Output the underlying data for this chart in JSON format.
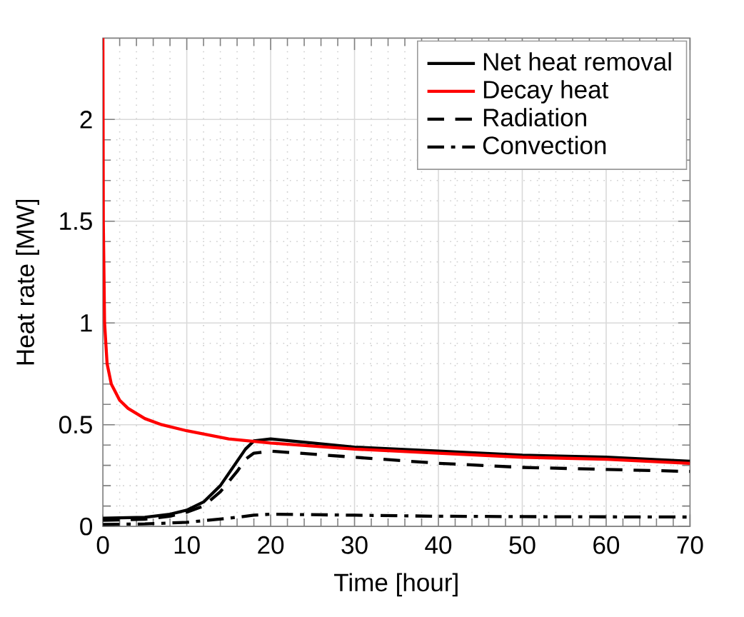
{
  "chart_data": {
    "type": "line",
    "xlabel": "Time [hour]",
    "ylabel": "Heat rate [MW]",
    "xlim": [
      0,
      70
    ],
    "ylim": [
      0,
      2.4
    ],
    "xticks": [
      0,
      10,
      20,
      30,
      40,
      50,
      60,
      70
    ],
    "yticks": [
      0,
      0.5,
      1,
      1.5,
      2
    ],
    "grid": true,
    "legend": "top right",
    "marker": "none",
    "series": [
      {
        "name": "Net heat removal",
        "color": "#000000",
        "line_style": "solid",
        "x": [
          0,
          5,
          8,
          10,
          12,
          14,
          15,
          16,
          17,
          18,
          20,
          25,
          30,
          40,
          50,
          60,
          70
        ],
        "values": [
          0.04,
          0.045,
          0.06,
          0.08,
          0.12,
          0.2,
          0.26,
          0.32,
          0.38,
          0.42,
          0.43,
          0.41,
          0.39,
          0.37,
          0.35,
          0.34,
          0.32
        ]
      },
      {
        "name": "Decay heat",
        "color": "#ff0000",
        "line_style": "solid",
        "x": [
          0,
          0.05,
          0.2,
          0.5,
          1,
          2,
          3,
          5,
          7,
          10,
          15,
          20,
          30,
          40,
          50,
          60,
          70
        ],
        "values": [
          2.4,
          1.5,
          1.0,
          0.8,
          0.7,
          0.62,
          0.58,
          0.53,
          0.5,
          0.47,
          0.43,
          0.41,
          0.38,
          0.36,
          0.34,
          0.33,
          0.31
        ]
      },
      {
        "name": "Radiation",
        "color": "#000000",
        "line_style": "dashed",
        "x": [
          0,
          5,
          8,
          10,
          12,
          14,
          16,
          17,
          18,
          20,
          30,
          40,
          50,
          60,
          70
        ],
        "values": [
          0.03,
          0.035,
          0.05,
          0.07,
          0.1,
          0.17,
          0.27,
          0.33,
          0.36,
          0.37,
          0.34,
          0.31,
          0.29,
          0.28,
          0.27
        ]
      },
      {
        "name": "Convection",
        "color": "#000000",
        "line_style": "dashdot",
        "x": [
          0,
          5,
          10,
          15,
          18,
          20,
          30,
          40,
          50,
          60,
          70
        ],
        "values": [
          0.01,
          0.012,
          0.02,
          0.04,
          0.055,
          0.06,
          0.055,
          0.05,
          0.048,
          0.047,
          0.046
        ]
      }
    ]
  }
}
